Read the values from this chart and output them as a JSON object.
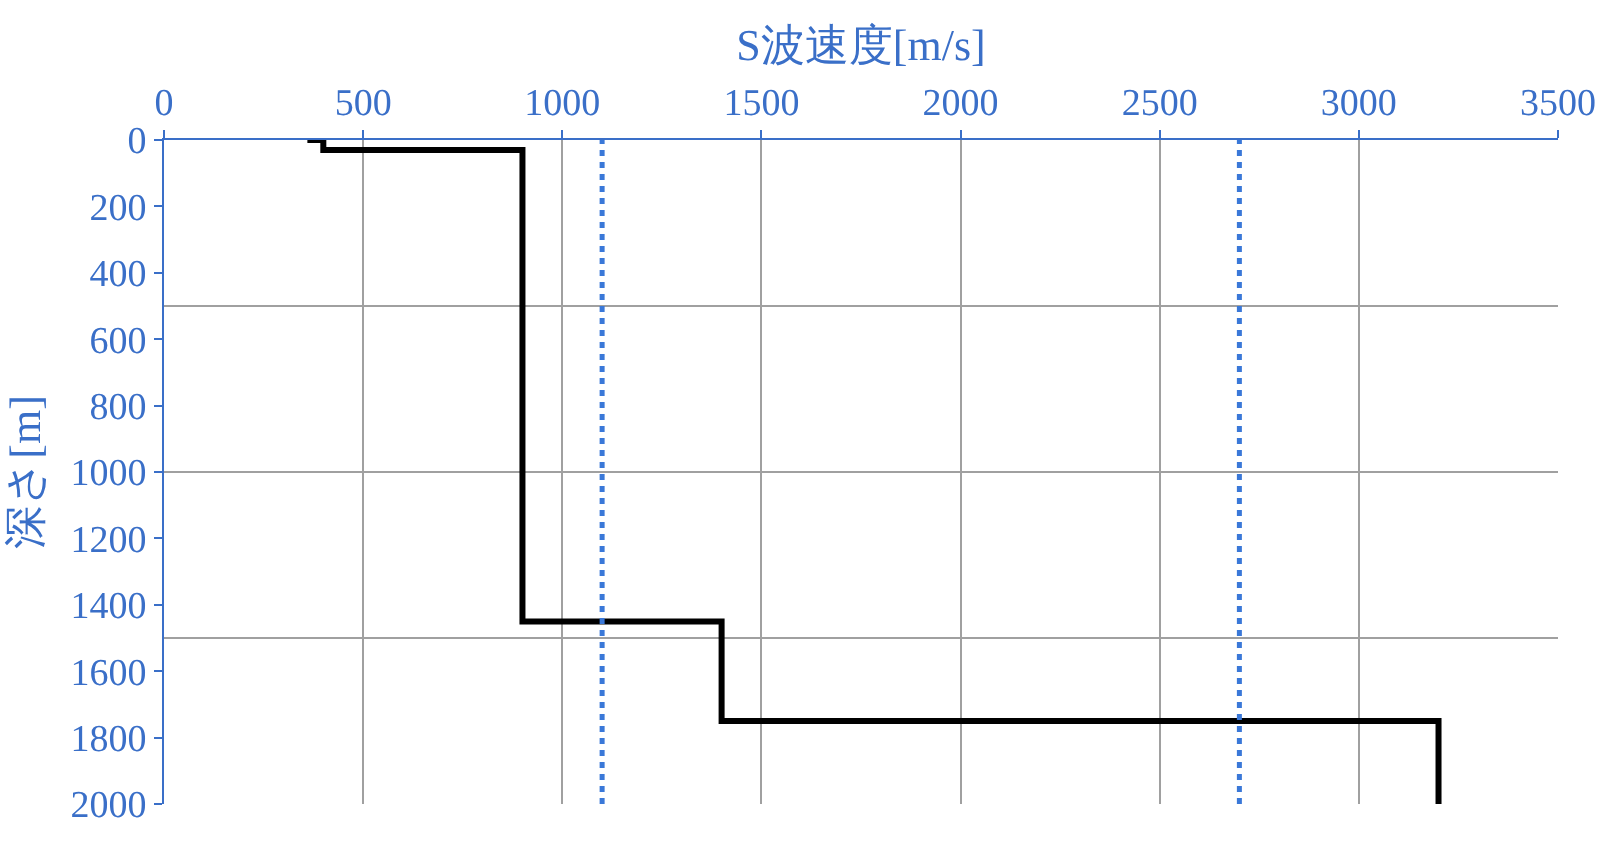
{
  "chart_data": {
    "type": "line",
    "xlabel": "S波速度[m/s]",
    "ylabel": "深さ[m]",
    "series": [
      {
        "color": "#000000",
        "x": [
          360,
          400,
          400,
          900,
          900,
          1400,
          1400,
          3200,
          3200
        ],
        "values": [
          0,
          0,
          30,
          30,
          1450,
          1450,
          1750,
          1750,
          2000
        ]
      }
    ],
    "xlim": [
      0,
      3500
    ],
    "xticks": [
      0,
      500,
      1000,
      1500,
      2000,
      2500,
      3000,
      3500
    ],
    "ylim": [
      2000,
      0
    ],
    "yticks": [
      0,
      200,
      400,
      600,
      800,
      1000,
      1200,
      1400,
      1600,
      1800,
      2000
    ],
    "grid": "x",
    "marker": "none",
    "line_style": "solid",
    "ref_lines": [
      {
        "axis": "x",
        "value": 1100,
        "color": "#3a78d8",
        "line_style": "dotted"
      },
      {
        "axis": "x",
        "value": 2700,
        "color": "#3a78d8",
        "line_style": "dotted"
      },
      {
        "axis": "y",
        "value": 500,
        "color": "#a0a0a0",
        "line_style": "solid"
      },
      {
        "axis": "y",
        "value": 1000,
        "color": "#a0a0a0",
        "line_style": "solid"
      },
      {
        "axis": "y",
        "value": 1500,
        "color": "#a0a0a0",
        "line_style": "solid"
      }
    ]
  }
}
